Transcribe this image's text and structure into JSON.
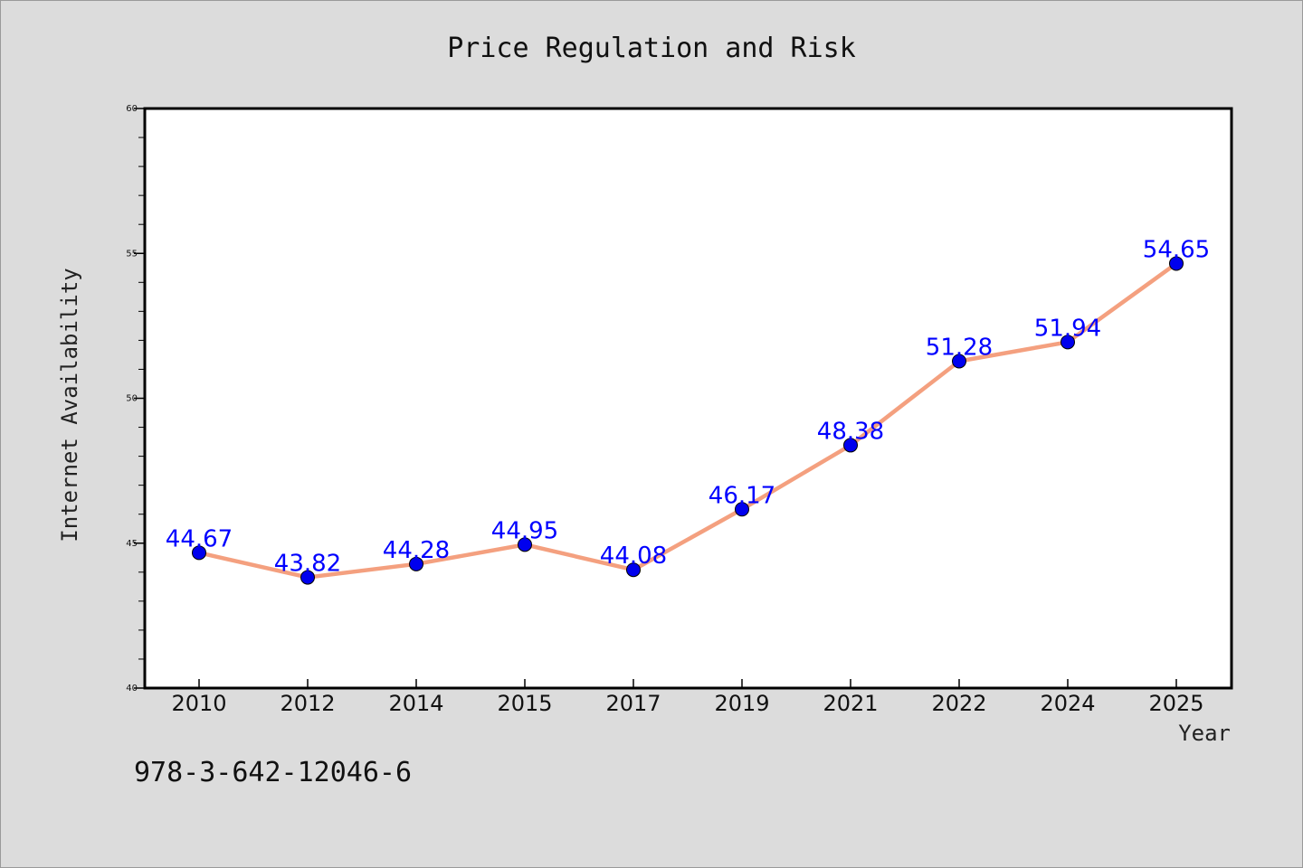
{
  "chart_data": {
    "type": "line",
    "title": "Price Regulation and Risk",
    "xlabel": "Year",
    "ylabel": "Internet Availability",
    "categories": [
      "2010",
      "2012",
      "2014",
      "2015",
      "2017",
      "2019",
      "2021",
      "2022",
      "2024",
      "2025"
    ],
    "series": [
      {
        "values": [
          44.67,
          43.82,
          44.28,
          44.95,
          44.08,
          46.17,
          48.38,
          51.28,
          51.94,
          54.65
        ],
        "data_labels": [
          "44.67",
          "43.82",
          "44.28",
          "44.95",
          "44.08",
          "46.17",
          "48.38",
          "51.28",
          "51.94",
          "54.65"
        ]
      }
    ],
    "ylim": [
      40,
      60
    ],
    "yticks": [
      "40",
      "45",
      "50",
      "55",
      "60"
    ],
    "grid": false,
    "colors": {
      "line": "#f4a07f",
      "marker": "#0000ee",
      "label": "#0000ff",
      "plot_bg": "#ffffff",
      "page_bg": "#dcdcdc"
    }
  },
  "footer": {
    "isbn": "978-3-642-12046-6"
  }
}
